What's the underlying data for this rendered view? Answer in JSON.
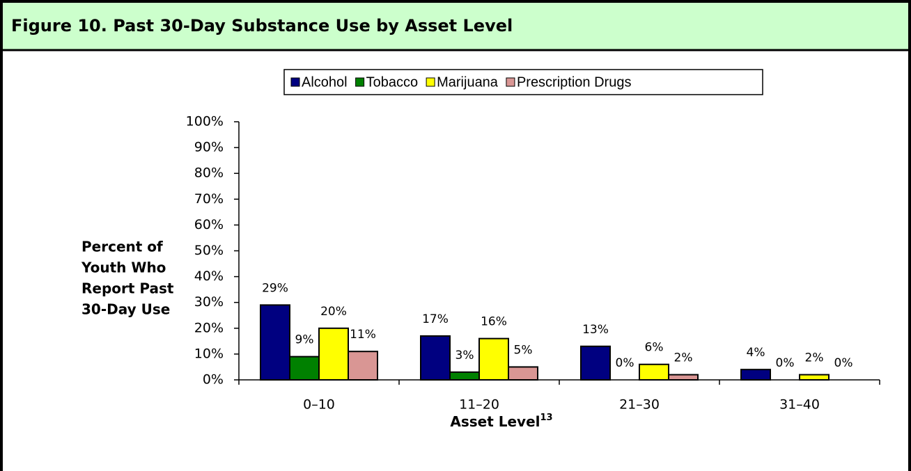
{
  "chart_data": {
    "type": "bar",
    "title": "Figure 10.  Past 30-Day Substance Use by Asset Level",
    "ylabel": [
      "Percent of",
      "Youth Who",
      "Report Past",
      "30-Day Use"
    ],
    "xlabel": "Asset Level",
    "xlabel_note": "13",
    "categories": [
      "0–10",
      "11–20",
      "21–30",
      "31–40"
    ],
    "series": [
      {
        "name": "Alcohol",
        "color": "#000080",
        "values": [
          29,
          17,
          13,
          4
        ],
        "value_labels": [
          "29%",
          "17%",
          "13%",
          "4%"
        ]
      },
      {
        "name": "Tobacco",
        "color": "#008000",
        "values": [
          9,
          3,
          0,
          0
        ],
        "value_labels": [
          "9%",
          "3%",
          "0%",
          "0%"
        ]
      },
      {
        "name": "Marijuana",
        "color": "#ffff00",
        "values": [
          20,
          16,
          6,
          2
        ],
        "value_labels": [
          "20%",
          "16%",
          "6%",
          "2%"
        ]
      },
      {
        "name": "Prescription Drugs",
        "color": "#d99694",
        "values": [
          11,
          5,
          2,
          0
        ],
        "value_labels": [
          "11%",
          "5%",
          "2%",
          "0%"
        ]
      }
    ],
    "ylim": [
      0,
      100
    ],
    "yticks": [
      {
        "value": 0,
        "label": "0%"
      },
      {
        "value": 10,
        "label": "10%"
      },
      {
        "value": 20,
        "label": "20%"
      },
      {
        "value": 30,
        "label": "30%"
      },
      {
        "value": 40,
        "label": "40%"
      },
      {
        "value": 50,
        "label": "50%"
      },
      {
        "value": 60,
        "label": "60%"
      },
      {
        "value": 70,
        "label": "70%"
      },
      {
        "value": 80,
        "label": "80%"
      },
      {
        "value": 90,
        "label": "90%"
      },
      {
        "value": 100,
        "label": "100%"
      }
    ],
    "legend": "top",
    "grid": false
  }
}
